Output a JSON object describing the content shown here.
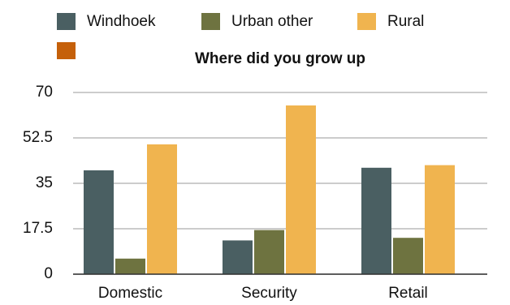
{
  "chart_data": {
    "type": "bar",
    "title": "Where did you grow up",
    "categories": [
      "Domestic",
      "Security",
      "Retail"
    ],
    "series": [
      {
        "name": "Windhoek",
        "color": "#4a5f62",
        "values": [
          40,
          13,
          41
        ]
      },
      {
        "name": "Urban other",
        "color": "#6e7340",
        "values": [
          6,
          17,
          14
        ]
      },
      {
        "name": "Rural",
        "color": "#f0b44f",
        "values": [
          50,
          65,
          42
        ]
      }
    ],
    "ylim": [
      0,
      70
    ],
    "yticks": [
      0,
      17.5,
      35,
      52.5,
      70
    ],
    "grid": true
  }
}
